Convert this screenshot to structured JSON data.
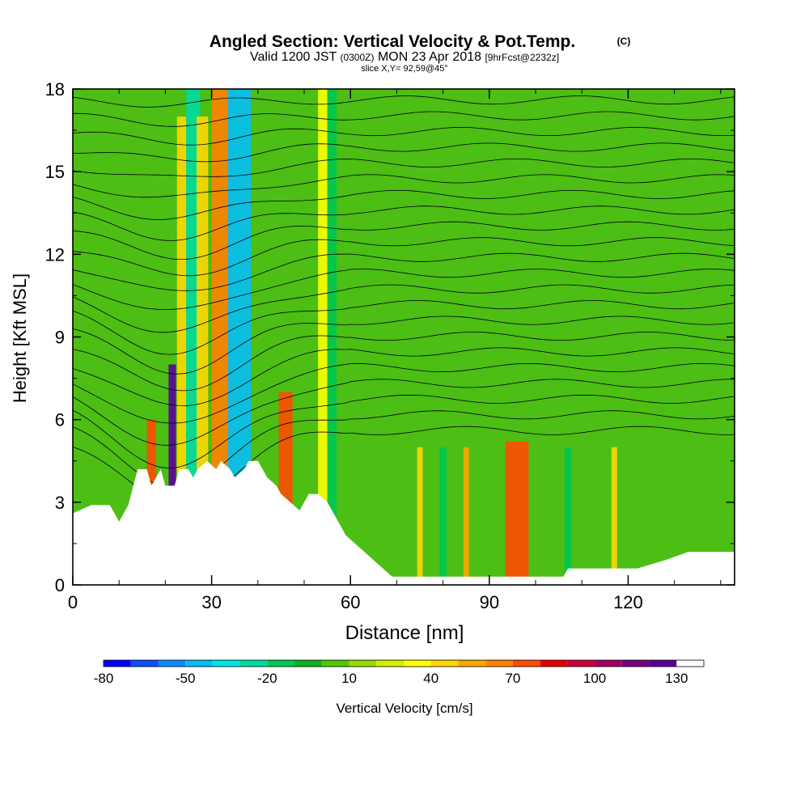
{
  "chart_data": {
    "type": "heatmap",
    "title": "Angled Section: Vertical Velocity & Pot.Temp.",
    "title_unit": "(C)",
    "subtitle_main": "Valid 1200 JST",
    "subtitle_zulu": "(0300Z)",
    "subtitle_date": "MON 23 Apr 2018",
    "subtitle_fcst": "[9hrFcst@2232z]",
    "slice_text": "slice X,Y= 92,59@45°",
    "xlabel": "Distance [nm]",
    "ylabel": "Height [Kft MSL]",
    "xlim": [
      0,
      143
    ],
    "ylim": [
      0,
      18
    ],
    "x_ticks": [
      0,
      30,
      60,
      90,
      120
    ],
    "x_tick_labels": [
      "0",
      "30",
      "60",
      "90",
      "120"
    ],
    "y_ticks": [
      0,
      3,
      6,
      9,
      12,
      15,
      18
    ],
    "y_tick_labels": [
      "0",
      "3",
      "6",
      "9",
      "12",
      "15",
      "18"
    ],
    "colorbar": {
      "label": "Vertical Velocity [cm/s]",
      "min": -80,
      "max": 140,
      "step": 10,
      "tick_values": [
        -80,
        -50,
        -20,
        10,
        40,
        70,
        100,
        130
      ],
      "tick_labels": [
        "-80",
        "-50",
        "-20",
        "10",
        "40",
        "70",
        "100",
        "130"
      ],
      "colors": [
        "#0000ff",
        "#0a50ff",
        "#0a8cff",
        "#05bef5",
        "#00e6e6",
        "#00dca0",
        "#00c850",
        "#10b020",
        "#50c800",
        "#96dc00",
        "#d2f000",
        "#ffff00",
        "#ffd700",
        "#ffa500",
        "#ff8200",
        "#ff4b00",
        "#e60000",
        "#c8003c",
        "#a00064",
        "#780082",
        "#5a0096"
      ]
    },
    "background_color": "#4cbe14",
    "terrain_color": "#ffffff",
    "columns": [
      {
        "x": 17,
        "width": 2,
        "ymax": 6,
        "value": 70
      },
      {
        "x": 21.5,
        "width": 1.6,
        "ymax": 8,
        "value": 120
      },
      {
        "x": 23.5,
        "width": 2,
        "ymax": 17,
        "value": 40
      },
      {
        "x": 26,
        "width": 3,
        "ymax": 18,
        "value": -30
      },
      {
        "x": 28,
        "width": 2.5,
        "ymax": 17,
        "value": 40
      },
      {
        "x": 32,
        "width": 4,
        "ymax": 18,
        "value": 60
      },
      {
        "x": 36,
        "width": 5,
        "ymax": 18,
        "value": -50
      },
      {
        "x": 46,
        "width": 3,
        "ymax": 7,
        "value": 70
      },
      {
        "x": 54,
        "width": 2,
        "ymax": 18,
        "value": 30
      },
      {
        "x": 56,
        "width": 2,
        "ymax": 18,
        "value": -20
      },
      {
        "x": 75,
        "width": 1.2,
        "ymax": 5,
        "value": 40
      },
      {
        "x": 80,
        "width": 1.5,
        "ymax": 5,
        "value": -20
      },
      {
        "x": 85,
        "width": 1.2,
        "ymax": 5,
        "value": 50
      },
      {
        "x": 96,
        "width": 5,
        "ymax": 5.2,
        "value": 70
      },
      {
        "x": 107,
        "width": 1.5,
        "ymax": 5,
        "value": -20
      },
      {
        "x": 117,
        "width": 1.2,
        "ymax": 5,
        "value": 40
      }
    ],
    "terrain": [
      [
        0,
        2.6
      ],
      [
        4,
        2.9
      ],
      [
        8,
        2.9
      ],
      [
        9,
        2.6
      ],
      [
        10,
        2.3
      ],
      [
        11,
        2.6
      ],
      [
        12,
        2.9
      ],
      [
        14,
        4.2
      ],
      [
        16,
        4.2
      ],
      [
        17,
        3.6
      ],
      [
        19,
        4.2
      ],
      [
        20,
        3.6
      ],
      [
        22,
        3.6
      ],
      [
        23,
        4.2
      ],
      [
        25,
        4.2
      ],
      [
        26,
        3.9
      ],
      [
        27,
        4.2
      ],
      [
        29,
        4.5
      ],
      [
        31,
        4.2
      ],
      [
        32,
        4.5
      ],
      [
        34,
        4.2
      ],
      [
        35,
        3.9
      ],
      [
        37,
        4.2
      ],
      [
        38,
        4.5
      ],
      [
        40,
        4.5
      ],
      [
        42,
        3.9
      ],
      [
        44,
        3.6
      ],
      [
        45,
        3.3
      ],
      [
        47,
        3.0
      ],
      [
        49,
        2.7
      ],
      [
        51,
        3.3
      ],
      [
        53,
        3.3
      ],
      [
        55,
        3.0
      ],
      [
        57,
        2.4
      ],
      [
        59,
        1.8
      ],
      [
        61,
        1.5
      ],
      [
        63,
        1.2
      ],
      [
        65,
        0.9
      ],
      [
        67,
        0.6
      ],
      [
        69,
        0.3
      ],
      [
        74,
        0.3
      ],
      [
        80,
        0.3
      ],
      [
        90,
        0.3
      ],
      [
        100,
        0.3
      ],
      [
        106,
        0.3
      ],
      [
        107,
        0.6
      ],
      [
        116,
        0.6
      ],
      [
        122,
        0.6
      ],
      [
        128,
        0.9
      ],
      [
        133,
        1.2
      ],
      [
        141,
        1.2
      ],
      [
        143,
        1.2
      ]
    ],
    "theta_contour_levels": 22,
    "theta_contour_top": 17.6,
    "theta_contour_bottom": 5.6
  }
}
